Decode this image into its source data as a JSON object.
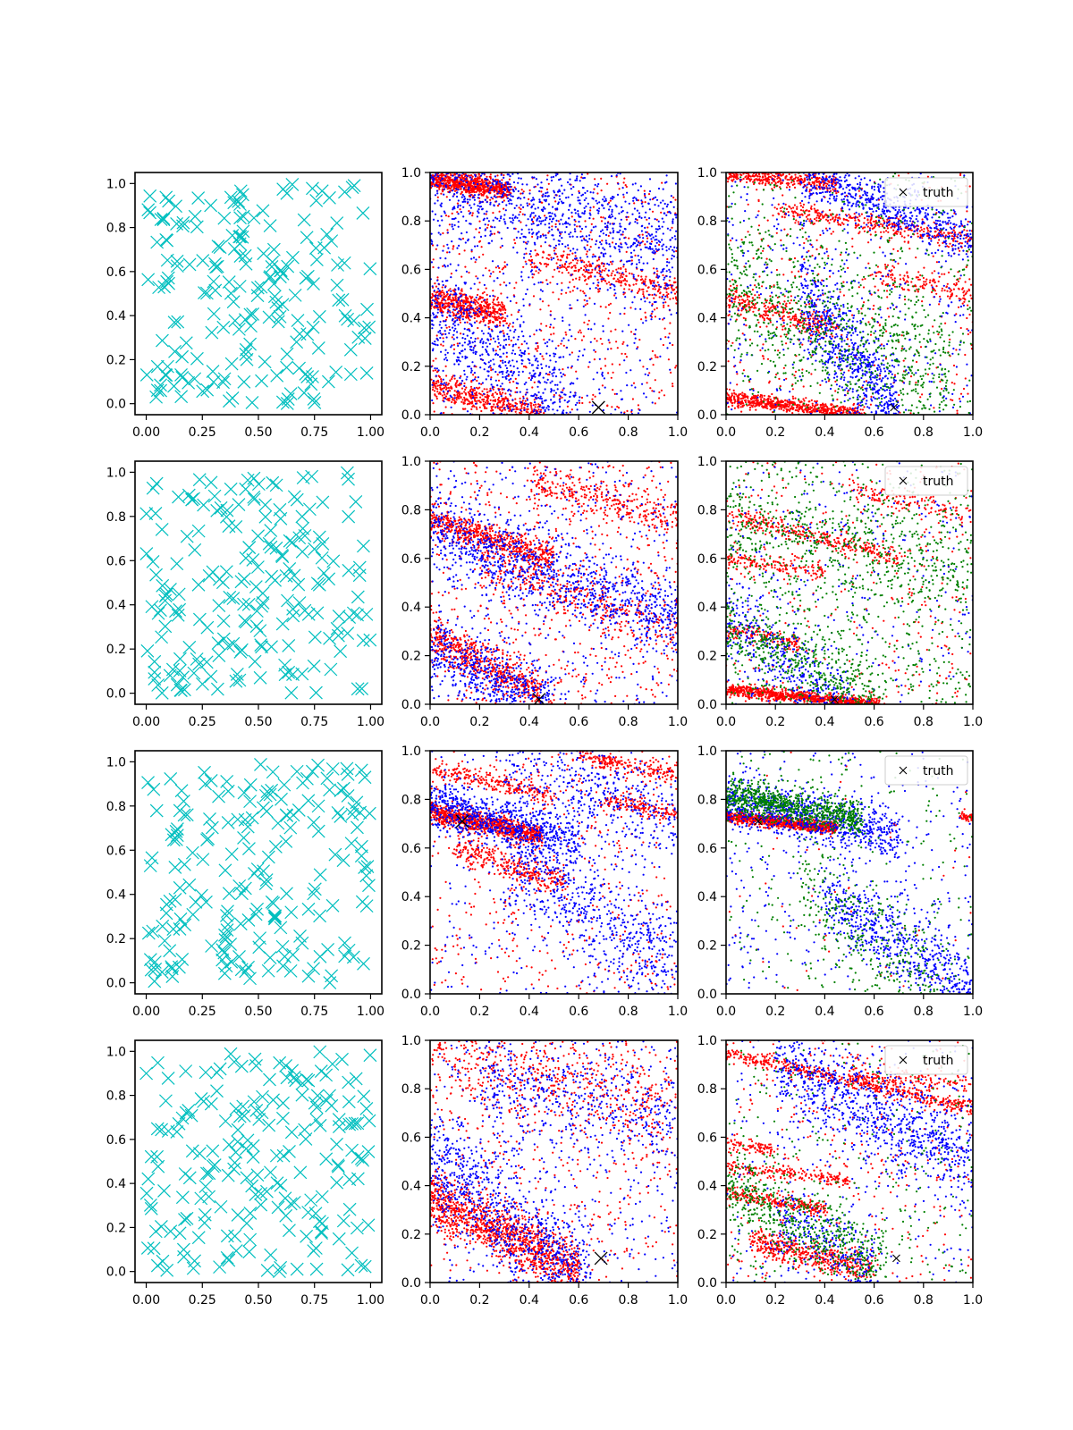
{
  "chart_data": [
    {
      "panel": "r0c0",
      "type": "scatter",
      "marker": "x",
      "color": "#00bfbf",
      "n_points": 200,
      "seed": 11,
      "xlim": [
        -0.05,
        1.05
      ],
      "ylim": [
        -0.05,
        1.05
      ],
      "xticks": [
        "0.00",
        "0.25",
        "0.50",
        "0.75",
        "1.00"
      ],
      "yticks": [
        "0.0",
        "0.2",
        "0.4",
        "0.6",
        "0.8",
        "1.0"
      ]
    },
    {
      "panel": "r0c1",
      "type": "scatter",
      "xlim": [
        0,
        1
      ],
      "ylim": [
        0,
        1
      ],
      "xticks": [
        "0.0",
        "0.2",
        "0.4",
        "0.6",
        "0.8",
        "1.0"
      ],
      "yticks": [
        "0.0",
        "0.2",
        "0.4",
        "0.6",
        "0.8",
        "1.0"
      ],
      "truth": {
        "x": 0.68,
        "y": 0.03
      },
      "series": [
        {
          "color": "#ff0000",
          "bands": [
            [
              0.0,
              0.97,
              0.32,
              0.93,
              0.02,
              700
            ],
            [
              0.0,
              0.48,
              0.3,
              0.42,
              0.03,
              500
            ],
            [
              0.0,
              0.12,
              0.45,
              0.0,
              0.03,
              450
            ],
            [
              0.4,
              0.66,
              1.0,
              0.5,
              0.03,
              300
            ]
          ],
          "uniform": 600,
          "seed": 21
        },
        {
          "color": "#0000ff",
          "bands": [
            [
              0.0,
              1.0,
              1.0,
              0.68,
              0.12,
              900
            ],
            [
              0.0,
              0.43,
              0.6,
              0.0,
              0.12,
              600
            ]
          ],
          "uniform": 500,
          "seed": 22
        }
      ]
    },
    {
      "panel": "r0c2",
      "type": "scatter",
      "xlim": [
        0,
        1
      ],
      "ylim": [
        0,
        1
      ],
      "xticks": [
        "0.0",
        "0.2",
        "0.4",
        "0.6",
        "0.8",
        "1.0"
      ],
      "yticks": [
        "0.0",
        "0.2",
        "0.4",
        "0.6",
        "0.8",
        "1.0"
      ],
      "truth": {
        "x": 0.68,
        "y": 0.03
      },
      "legend": {
        "label": "truth",
        "loc": "upper right"
      },
      "series": [
        {
          "color": "#ff0000",
          "bands": [
            [
              0.0,
              1.0,
              0.45,
              0.95,
              0.02,
              400
            ],
            [
              0.2,
              0.85,
              1.0,
              0.72,
              0.02,
              350
            ],
            [
              0.0,
              0.07,
              0.55,
              0.0,
              0.015,
              650
            ],
            [
              0.0,
              0.48,
              0.45,
              0.35,
              0.03,
              300
            ],
            [
              0.6,
              0.58,
              1.0,
              0.5,
              0.03,
              150
            ]
          ],
          "uniform": 400,
          "seed": 31
        },
        {
          "color": "#0000ff",
          "bands": [
            [
              0.3,
              1.0,
              1.0,
              0.72,
              0.05,
              600
            ],
            [
              0.3,
              0.5,
              0.7,
              0.0,
              0.1,
              700
            ]
          ],
          "uniform": 400,
          "seed": 32
        },
        {
          "color": "#008000",
          "bands": [
            [
              0.0,
              0.55,
              0.9,
              0.15,
              0.15,
              700
            ]
          ],
          "uniform": 400,
          "seed": 33
        }
      ]
    },
    {
      "panel": "r1c0",
      "type": "scatter",
      "marker": "x",
      "color": "#00bfbf",
      "n_points": 200,
      "seed": 12,
      "xlim": [
        -0.05,
        1.05
      ],
      "ylim": [
        -0.05,
        1.05
      ],
      "xticks": [
        "0.00",
        "0.25",
        "0.50",
        "0.75",
        "1.00"
      ],
      "yticks": [
        "0.0",
        "0.2",
        "0.4",
        "0.6",
        "0.8",
        "1.0"
      ]
    },
    {
      "panel": "r1c1",
      "type": "scatter",
      "xlim": [
        0,
        1
      ],
      "ylim": [
        0,
        1
      ],
      "xticks": [
        "0.0",
        "0.2",
        "0.4",
        "0.6",
        "0.8",
        "1.0"
      ],
      "yticks": [
        "0.0",
        "0.2",
        "0.4",
        "0.6",
        "0.8",
        "1.0"
      ],
      "truth": {
        "x": 0.44,
        "y": 0.02
      },
      "series": [
        {
          "color": "#ff0000",
          "bands": [
            [
              0.0,
              0.76,
              0.5,
              0.6,
              0.03,
              550
            ],
            [
              0.0,
              0.28,
              0.45,
              0.05,
              0.04,
              550
            ],
            [
              0.4,
              0.92,
              1.0,
              0.76,
              0.04,
              300
            ],
            [
              0.2,
              0.58,
              1.0,
              0.3,
              0.05,
              350
            ]
          ],
          "uniform": 600,
          "seed": 41
        },
        {
          "color": "#0000ff",
          "bands": [
            [
              0.0,
              0.72,
              1.0,
              0.35,
              0.08,
              900
            ],
            [
              0.0,
              0.22,
              0.5,
              0.0,
              0.07,
              500
            ]
          ],
          "uniform": 500,
          "seed": 42
        }
      ]
    },
    {
      "panel": "r1c2",
      "type": "scatter",
      "xlim": [
        0,
        1
      ],
      "ylim": [
        0,
        1
      ],
      "xticks": [
        "0.0",
        "0.2",
        "0.4",
        "0.6",
        "0.8",
        "1.0"
      ],
      "yticks": [
        "0.0",
        "0.2",
        "0.4",
        "0.6",
        "0.8",
        "1.0"
      ],
      "truth": {
        "x": 0.44,
        "y": 0.02
      },
      "legend": {
        "label": "truth",
        "loc": "upper right"
      },
      "series": [
        {
          "color": "#ff0000",
          "bands": [
            [
              0.0,
              0.06,
              0.62,
              0.0,
              0.012,
              900
            ],
            [
              0.0,
              0.78,
              0.7,
              0.6,
              0.02,
              300
            ],
            [
              0.0,
              0.6,
              0.4,
              0.55,
              0.02,
              150
            ],
            [
              0.0,
              0.3,
              0.3,
              0.25,
              0.02,
              150
            ],
            [
              0.5,
              0.88,
              1.0,
              0.78,
              0.02,
              120
            ]
          ],
          "uniform": 350,
          "seed": 51
        },
        {
          "color": "#0000ff",
          "bands": [
            [
              0.0,
              0.35,
              0.5,
              0.0,
              0.08,
              350
            ]
          ],
          "uniform": 300,
          "seed": 52
        },
        {
          "color": "#008000",
          "bands": [
            [
              0.0,
              0.75,
              1.0,
              0.55,
              0.1,
              400
            ],
            [
              0.0,
              0.3,
              0.6,
              0.05,
              0.08,
              400
            ]
          ],
          "uniform": 700,
          "seed": 53
        }
      ]
    },
    {
      "panel": "r2c0",
      "type": "scatter",
      "marker": "x",
      "color": "#00bfbf",
      "n_points": 200,
      "seed": 13,
      "xlim": [
        -0.05,
        1.05
      ],
      "ylim": [
        -0.05,
        1.05
      ],
      "xticks": [
        "0.00",
        "0.25",
        "0.50",
        "0.75",
        "1.00"
      ],
      "yticks": [
        "0.0",
        "0.2",
        "0.4",
        "0.6",
        "0.8",
        "1.0"
      ]
    },
    {
      "panel": "r2c1",
      "type": "scatter",
      "xlim": [
        0,
        1
      ],
      "ylim": [
        0,
        1
      ],
      "xticks": [
        "0.0",
        "0.2",
        "0.4",
        "0.6",
        "0.8",
        "1.0"
      ],
      "yticks": [
        "0.0",
        "0.2",
        "0.4",
        "0.6",
        "0.8",
        "1.0"
      ],
      "truth": {
        "x": 0.13,
        "y": 0.71
      },
      "series": [
        {
          "color": "#ff0000",
          "bands": [
            [
              0.0,
              0.75,
              0.45,
              0.65,
              0.02,
              900
            ],
            [
              0.0,
              0.92,
              0.5,
              0.82,
              0.02,
              250
            ],
            [
              0.1,
              0.6,
              0.55,
              0.45,
              0.03,
              300
            ],
            [
              0.6,
              0.98,
              1.0,
              0.9,
              0.02,
              200
            ],
            [
              0.7,
              0.8,
              1.0,
              0.74,
              0.02,
              150
            ]
          ],
          "uniform": 450,
          "seed": 61
        },
        {
          "color": "#0000ff",
          "bands": [
            [
              0.0,
              0.78,
              0.6,
              0.62,
              0.05,
              700
            ],
            [
              0.3,
              0.55,
              1.0,
              0.1,
              0.12,
              600
            ],
            [
              0.3,
              0.95,
              1.0,
              0.7,
              0.1,
              400
            ]
          ],
          "uniform": 300,
          "seed": 62
        }
      ]
    },
    {
      "panel": "r2c2",
      "type": "scatter",
      "xlim": [
        0,
        1
      ],
      "ylim": [
        0,
        1
      ],
      "xticks": [
        "0.0",
        "0.2",
        "0.4",
        "0.6",
        "0.8",
        "1.0"
      ],
      "yticks": [
        "0.0",
        "0.2",
        "0.4",
        "0.6",
        "0.8",
        "1.0"
      ],
      "truth": {
        "x": 0.13,
        "y": 0.71
      },
      "legend": {
        "label": "truth",
        "loc": "upper right"
      },
      "series": [
        {
          "color": "#ff0000",
          "bands": [
            [
              0.0,
              0.73,
              0.45,
              0.68,
              0.012,
              900
            ],
            [
              0.95,
              0.73,
              1.0,
              0.72,
              0.01,
              40
            ]
          ],
          "uniform": 60,
          "seed": 71
        },
        {
          "color": "#0000ff",
          "bands": [
            [
              0.0,
              0.8,
              0.7,
              0.65,
              0.05,
              800
            ],
            [
              0.4,
              0.4,
              1.0,
              0.0,
              0.08,
              600
            ]
          ],
          "uniform": 350,
          "seed": 72
        },
        {
          "color": "#008000",
          "bands": [
            [
              0.0,
              0.82,
              0.55,
              0.72,
              0.035,
              800
            ],
            [
              0.3,
              0.45,
              0.9,
              0.0,
              0.12,
              300
            ]
          ],
          "uniform": 250,
          "seed": 73
        }
      ]
    },
    {
      "panel": "r3c0",
      "type": "scatter",
      "marker": "x",
      "color": "#00bfbf",
      "n_points": 200,
      "seed": 14,
      "xlim": [
        -0.05,
        1.05
      ],
      "ylim": [
        -0.05,
        1.05
      ],
      "xticks": [
        "0.00",
        "0.25",
        "0.50",
        "0.75",
        "1.00"
      ],
      "yticks": [
        "0.0",
        "0.2",
        "0.4",
        "0.6",
        "0.8",
        "1.0"
      ]
    },
    {
      "panel": "r3c1",
      "type": "scatter",
      "xlim": [
        0,
        1
      ],
      "ylim": [
        0,
        1
      ],
      "xticks": [
        "0.0",
        "0.2",
        "0.4",
        "0.6",
        "0.8",
        "1.0"
      ],
      "yticks": [
        "0.0",
        "0.2",
        "0.4",
        "0.6",
        "0.8",
        "1.0"
      ],
      "truth": {
        "x": 0.69,
        "y": 0.1
      },
      "series": [
        {
          "color": "#ff0000",
          "bands": [
            [
              0.0,
              0.35,
              0.6,
              0.05,
              0.06,
              1200
            ],
            [
              0.0,
              0.95,
              1.0,
              0.7,
              0.1,
              500
            ]
          ],
          "uniform": 450,
          "seed": 81
        },
        {
          "color": "#0000ff",
          "bands": [
            [
              0.0,
              0.5,
              0.65,
              0.0,
              0.12,
              800
            ],
            [
              0.2,
              0.85,
              1.0,
              0.65,
              0.1,
              400
            ]
          ],
          "uniform": 400,
          "seed": 82
        }
      ]
    },
    {
      "panel": "r3c2",
      "type": "scatter",
      "xlim": [
        0,
        1
      ],
      "ylim": [
        0,
        1
      ],
      "xticks": [
        "0.0",
        "0.2",
        "0.4",
        "0.6",
        "0.8",
        "1.0"
      ],
      "yticks": [
        "0.0",
        "0.2",
        "0.4",
        "0.6",
        "0.8",
        "1.0"
      ],
      "truth": {
        "x": 0.69,
        "y": 0.1
      },
      "legend": {
        "label": "truth",
        "loc": "upper right"
      },
      "series": [
        {
          "color": "#ff0000",
          "bands": [
            [
              0.0,
              0.95,
              1.0,
              0.72,
              0.015,
              500
            ],
            [
              0.0,
              0.48,
              0.5,
              0.42,
              0.015,
              200
            ],
            [
              0.0,
              0.37,
              0.4,
              0.3,
              0.015,
              250
            ],
            [
              0.1,
              0.17,
              0.6,
              0.05,
              0.03,
              450
            ],
            [
              0.5,
              0.85,
              1.0,
              0.82,
              0.02,
              150
            ],
            [
              0.0,
              0.57,
              0.2,
              0.55,
              0.015,
              80
            ]
          ],
          "uniform": 350,
          "seed": 91
        },
        {
          "color": "#0000ff",
          "bands": [
            [
              0.2,
              0.9,
              1.0,
              0.5,
              0.1,
              900
            ],
            [
              0.2,
              0.3,
              0.6,
              0.05,
              0.08,
              250
            ]
          ],
          "uniform": 250,
          "seed": 92
        },
        {
          "color": "#008000",
          "bands": [
            [
              0.0,
              0.4,
              0.65,
              0.05,
              0.08,
              550
            ]
          ],
          "uniform": 250,
          "seed": 93
        }
      ]
    }
  ]
}
